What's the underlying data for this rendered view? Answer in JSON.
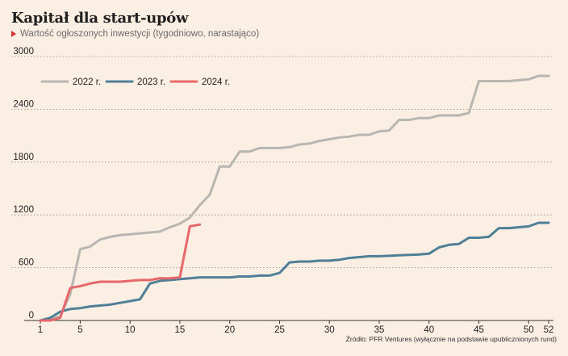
{
  "header": {
    "title": "Kapitał dla start-upów",
    "subtitle": "Wartość ogłoszonych inwestycji (tygodniowo, narastająco)",
    "marker_color": "#d32f2f"
  },
  "source": "Źródło: PFR Ventures (wyłącznie na podstawie upublicznionych rund)",
  "chart_data": {
    "type": "line",
    "title": "Kapitał dla start-upów",
    "subtitle": "Wartość ogłoszonych inwestycji (tygodniowo, narastająco)",
    "xlabel": "",
    "ylabel": "",
    "xlim": [
      1,
      52
    ],
    "ylim": [
      0,
      3000
    ],
    "x_ticks": [
      1,
      5,
      10,
      15,
      20,
      25,
      30,
      35,
      40,
      45,
      50,
      52
    ],
    "y_ticks": [
      0,
      600,
      1200,
      1800,
      2400,
      3000
    ],
    "grid": "horizontal dotted",
    "legend": "top-left",
    "series": [
      {
        "name": "2022 r.",
        "color": "#b8b6b0",
        "x": [
          1,
          2,
          3,
          4,
          5,
          6,
          7,
          8,
          9,
          10,
          11,
          12,
          13,
          14,
          15,
          16,
          17,
          18,
          19,
          20,
          21,
          22,
          23,
          24,
          25,
          26,
          27,
          28,
          29,
          30,
          31,
          32,
          33,
          34,
          35,
          36,
          37,
          38,
          39,
          40,
          41,
          42,
          43,
          44,
          45,
          46,
          47,
          48,
          49,
          50,
          51,
          52
        ],
        "values": [
          0,
          10,
          50,
          300,
          810,
          840,
          920,
          950,
          970,
          980,
          990,
          1000,
          1010,
          1060,
          1100,
          1170,
          1310,
          1430,
          1750,
          1750,
          1920,
          1920,
          1960,
          1960,
          1960,
          1970,
          2000,
          2010,
          2040,
          2060,
          2080,
          2090,
          2110,
          2110,
          2150,
          2160,
          2280,
          2280,
          2300,
          2300,
          2330,
          2330,
          2330,
          2360,
          2720,
          2720,
          2720,
          2720,
          2730,
          2740,
          2780,
          2780
        ]
      },
      {
        "name": "2023 r.",
        "color": "#4f7f96",
        "x": [
          1,
          2,
          3,
          4,
          5,
          6,
          7,
          8,
          9,
          10,
          11,
          12,
          13,
          14,
          15,
          16,
          17,
          18,
          19,
          20,
          21,
          22,
          23,
          24,
          25,
          26,
          27,
          28,
          29,
          30,
          31,
          32,
          33,
          34,
          35,
          36,
          37,
          38,
          39,
          40,
          41,
          42,
          43,
          44,
          45,
          46,
          47,
          48,
          49,
          50,
          51,
          52
        ],
        "values": [
          0,
          30,
          100,
          130,
          140,
          160,
          170,
          180,
          200,
          220,
          240,
          420,
          450,
          460,
          470,
          480,
          490,
          490,
          490,
          490,
          500,
          500,
          510,
          510,
          540,
          660,
          670,
          670,
          680,
          680,
          690,
          710,
          720,
          730,
          730,
          735,
          740,
          745,
          750,
          760,
          830,
          860,
          870,
          940,
          940,
          950,
          1050,
          1050,
          1060,
          1070,
          1110,
          1110
        ]
      },
      {
        "name": "2024 r.",
        "color": "#e8686a",
        "x": [
          1,
          2,
          3,
          4,
          5,
          6,
          7,
          8,
          9,
          10,
          11,
          12,
          13,
          14,
          15,
          16,
          17
        ],
        "values": [
          0,
          0,
          30,
          370,
          390,
          420,
          440,
          440,
          440,
          450,
          460,
          460,
          480,
          480,
          490,
          1070,
          1090
        ]
      }
    ]
  }
}
